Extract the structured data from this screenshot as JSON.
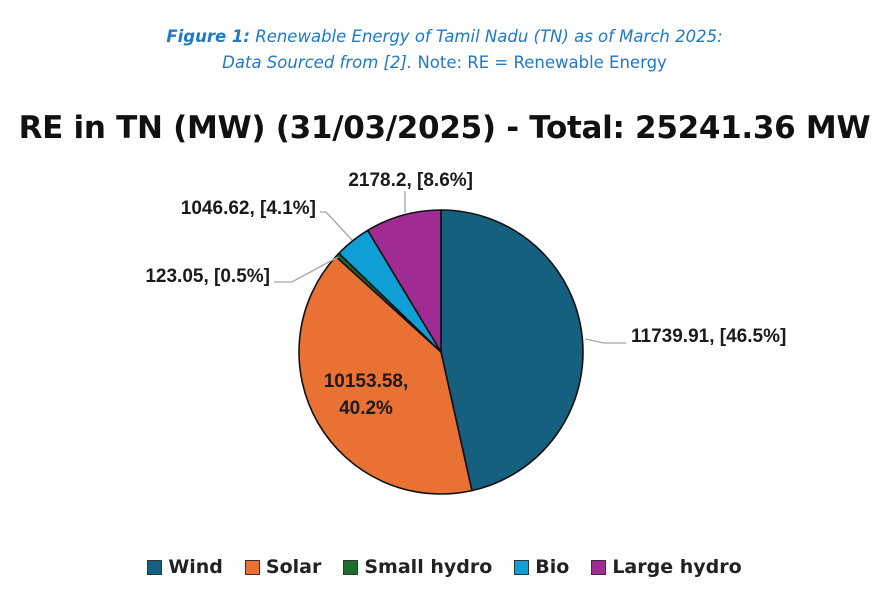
{
  "caption": {
    "line1_lead": "Figure 1:",
    "line1_rest": "Renewable Energy of Tamil Nadu (TN) as of March 2025:",
    "line2_italic": "Data Sourced from [2].",
    "line2_rest": "Note: RE = Renewable Energy"
  },
  "chart_data": {
    "type": "pie",
    "title": "RE in TN (MW) (31/03/2025) - Total: 25241.36 MW",
    "start_angle_deg": 90,
    "direction": "clockwise",
    "legend_position": "bottom",
    "slices": [
      {
        "name": "Wind",
        "value": 11739.91,
        "label": "11739.91, [46.5%]",
        "color": "#16607f"
      },
      {
        "name": "Solar",
        "value": 10153.58,
        "label_lines": [
          "10153.58,",
          "40.2%"
        ],
        "color": "#e97133"
      },
      {
        "name": "Small hydro",
        "value": 123.05,
        "label": "123.05, [0.5%]",
        "color": "#1f6b2e"
      },
      {
        "name": "Bio",
        "value": 1046.62,
        "label": "1046.62, [4.1%]",
        "color": "#0f9ed5"
      },
      {
        "name": "Large hydro",
        "value": 2178.2,
        "label": "2178.2, [8.6%]",
        "color": "#a02b93"
      }
    ]
  }
}
